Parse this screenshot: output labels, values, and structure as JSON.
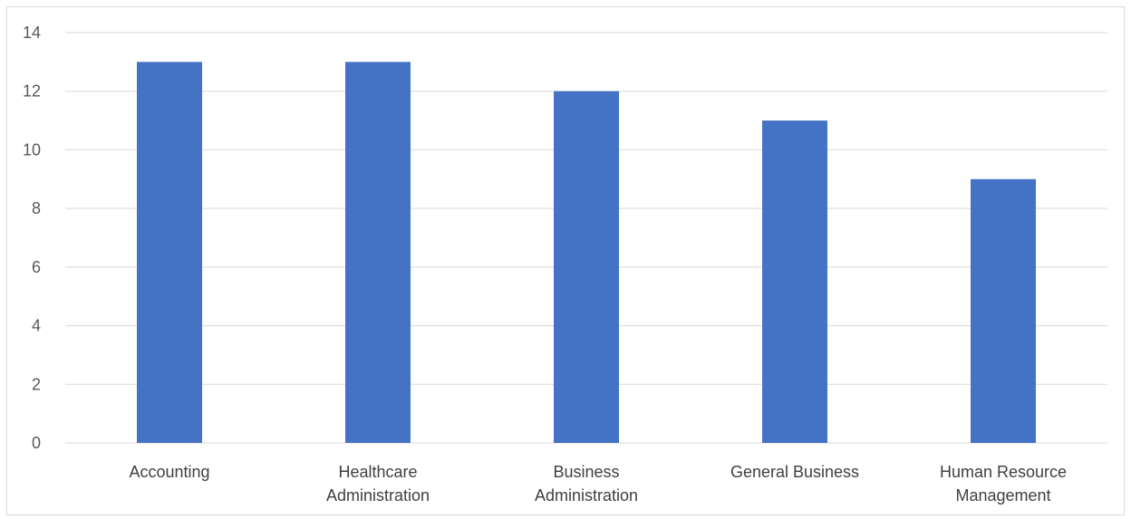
{
  "chart_data": {
    "type": "bar",
    "categories": [
      [
        "Accounting"
      ],
      [
        "Healthcare",
        "Administration"
      ],
      [
        "Business",
        "Administration"
      ],
      [
        "General Business"
      ],
      [
        "Human Resource",
        "Management"
      ]
    ],
    "values": [
      13,
      13,
      12,
      11,
      9
    ],
    "title": "",
    "xlabel": "",
    "ylabel": "",
    "ylim": [
      0,
      14
    ],
    "yticks": [
      0,
      2,
      4,
      6,
      8,
      10,
      12,
      14
    ],
    "grid": true,
    "legend": "none",
    "bar_color": "#4472c4"
  }
}
